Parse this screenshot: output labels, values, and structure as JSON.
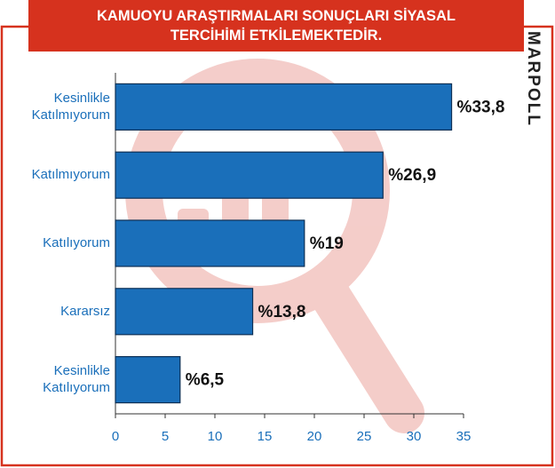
{
  "chart_data": {
    "type": "barh",
    "title": "KAMUOYU ARAŞTIRMALARI SONUÇLARI SİYASAL TERCİHİMİ ETKİLEMEKTEDİR.",
    "logo": "MARPOLL",
    "categories": [
      "Kesinlikle Katılmıyorum",
      "Katılmıyorum",
      "Katılıyorum",
      "Kararsız",
      "Kesinlikle Katılıyorum"
    ],
    "values": [
      33.8,
      26.9,
      19,
      13.8,
      6.5
    ],
    "value_labels": [
      "%33,8",
      "%26,9",
      "%19",
      "%13,8",
      "%6,5"
    ],
    "color": "#1a6fba",
    "xlim": [
      0,
      35
    ],
    "xticks": [
      0,
      5,
      10,
      15,
      20,
      25,
      30,
      35
    ]
  }
}
